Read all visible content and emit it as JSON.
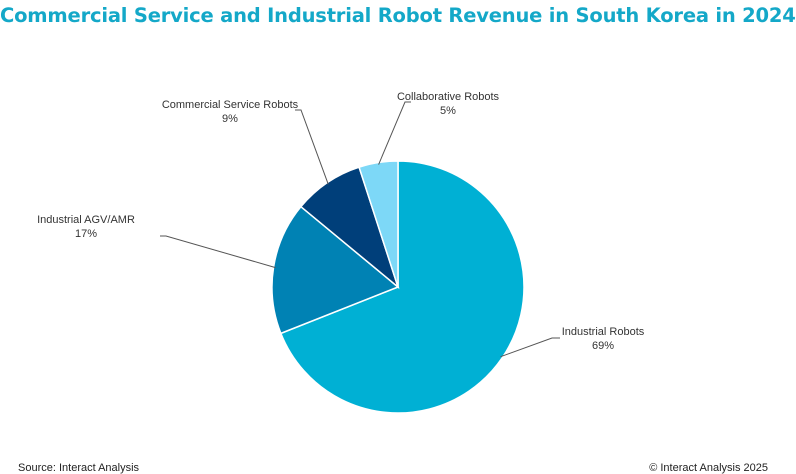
{
  "chart_data": {
    "type": "pie",
    "title": "Commercial Service and Industrial Robot Revenue in South Korea in 2024",
    "slices": [
      {
        "label": "Industrial Robots",
        "value": 69,
        "value_label": "69%",
        "color": "#00b0d4"
      },
      {
        "label": "Industrial AGV/AMR",
        "value": 17,
        "value_label": "17%",
        "color": "#0082b4"
      },
      {
        "label": "Commercial Service Robots",
        "value": 9,
        "value_label": "9%",
        "color": "#003f7a"
      },
      {
        "label": "Collaborative Robots",
        "value": 5,
        "value_label": "5%",
        "color": "#7dd8f7"
      }
    ],
    "start": "12 o'clock, clockwise",
    "legend": "none (leader-line labels)"
  },
  "footer": {
    "source": "Source: Interact Analysis",
    "copyright": "© Interact Analysis 2025"
  }
}
